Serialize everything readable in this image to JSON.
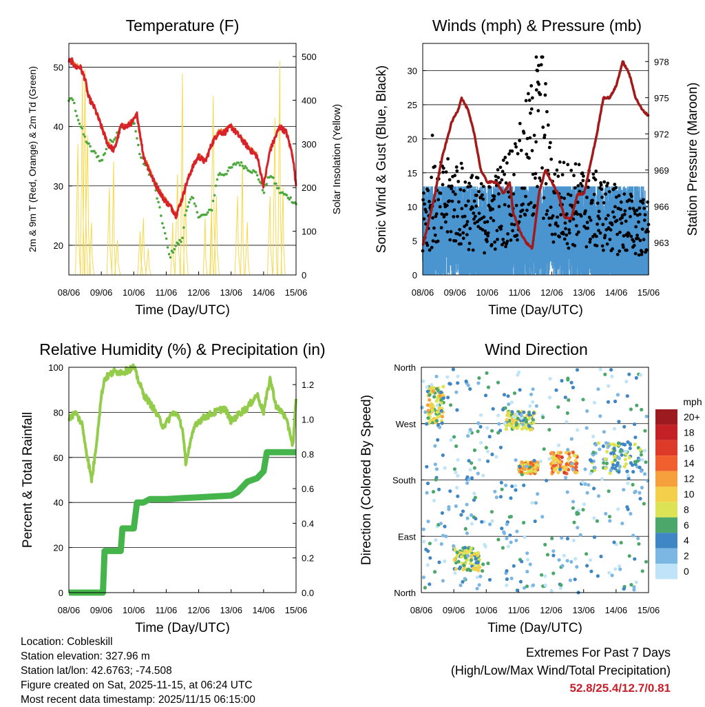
{
  "chart_data": [
    {
      "type": "line",
      "title": "Temperature (F)",
      "xlabel": "Time (Day/UTC)",
      "ylabel": "2m & 9m T (Red, Orange) & 2m Td (Green)",
      "y2label": "Solar Insolation (Yellow)",
      "x_ticks": [
        "08/06",
        "09/06",
        "10/06",
        "11/06",
        "12/06",
        "13/06",
        "14/06",
        "15/06"
      ],
      "xlim": [
        0,
        7
      ],
      "ylim": [
        15,
        54
      ],
      "y_ticks": [
        20,
        30,
        40,
        50
      ],
      "y2lim": [
        0,
        530
      ],
      "y2_ticks": [
        0,
        100,
        200,
        300,
        400,
        500
      ],
      "grid_y": [
        20,
        30,
        40,
        50
      ],
      "series": [
        {
          "name": "2m T",
          "color": "#d8222a",
          "x": [
            0,
            0.1,
            0.2,
            0.35,
            0.5,
            0.6,
            0.8,
            1,
            1.2,
            1.4,
            1.6,
            1.8,
            2,
            2.1,
            2.3,
            2.6,
            2.9,
            3.2,
            3.3,
            3.5,
            3.6,
            3.8,
            4,
            4.2,
            4.4,
            4.6,
            4.8,
            5,
            5.3,
            5.6,
            5.8,
            6,
            6.2,
            6.5,
            6.7,
            6.9,
            7
          ],
          "values": [
            51,
            51,
            50,
            50,
            48,
            45,
            43,
            40,
            37,
            36,
            40,
            40,
            41,
            42,
            35,
            31,
            28,
            26,
            25,
            28,
            30,
            33,
            35,
            34,
            37,
            39,
            39,
            40,
            38,
            36,
            35,
            30,
            36,
            40,
            39,
            35,
            30
          ]
        },
        {
          "name": "9m T",
          "color": "#f08030",
          "x": [
            0,
            0.5,
            1,
            2,
            3,
            4,
            5,
            6,
            7
          ],
          "values": [
            51.5,
            48.5,
            40.5,
            42,
            26,
            35,
            40,
            30,
            30.5
          ]
        },
        {
          "name": "2m Td",
          "color": "#4aa83c",
          "x": [
            0,
            0.1,
            0.3,
            0.5,
            0.7,
            0.9,
            1,
            1.2,
            1.4,
            1.6,
            1.8,
            2,
            2.2,
            2.4,
            2.6,
            2.8,
            3,
            3.1,
            3.3,
            3.5,
            3.6,
            3.8,
            4,
            4.2,
            4.4,
            4.6,
            4.8,
            5,
            5.2,
            5.5,
            5.8,
            6,
            6.2,
            6.5,
            6.8,
            7
          ],
          "values": [
            44,
            45,
            41,
            38,
            36,
            35,
            34,
            37,
            38,
            40,
            40,
            41,
            35,
            33,
            31,
            26,
            21,
            18,
            20,
            21,
            26,
            28,
            25,
            25,
            26,
            32,
            32,
            33,
            34,
            33,
            32,
            29,
            32,
            29,
            28,
            27
          ]
        }
      ],
      "solar_insolation": {
        "name": "Solar Insolation",
        "color": "#f7d84a",
        "x": [
          0.28,
          0.42,
          0.5,
          0.58,
          0.7,
          1.25,
          1.38,
          1.5,
          2.2,
          2.3,
          2.45,
          3.2,
          3.35,
          3.5,
          3.6,
          4.2,
          4.4,
          4.45,
          4.55,
          5.2,
          5.35,
          5.5,
          6.2,
          6.35,
          6.5,
          6.6
        ],
        "values": [
          300,
          450,
          470,
          320,
          120,
          200,
          260,
          80,
          100,
          130,
          60,
          120,
          230,
          460,
          200,
          130,
          160,
          410,
          180,
          180,
          260,
          120,
          180,
          360,
          490,
          200
        ]
      }
    },
    {
      "type": "scatter",
      "title": "Winds (mph) & Pressure (mb)",
      "xlabel": "Time (Day/UTC)",
      "ylabel": "Sonic Wind & Gust (Blue, Black)",
      "y2label": "Station Pressure (Maroon)",
      "x_ticks": [
        "08/06",
        "09/06",
        "10/06",
        "11/06",
        "12/06",
        "13/06",
        "14/06",
        "15/06"
      ],
      "xlim": [
        0,
        7
      ],
      "ylim": [
        0,
        34
      ],
      "y_ticks": [
        0,
        5,
        10,
        15,
        20,
        25,
        30
      ],
      "y2lim": [
        960.3,
        979.5
      ],
      "y2_ticks": [
        963,
        966,
        969,
        972,
        975,
        978
      ],
      "grid_y": [
        5,
        10,
        15,
        20,
        25,
        30
      ],
      "wind_mean_level": [
        [
          0,
          4
        ],
        [
          1,
          6
        ],
        [
          2,
          3
        ],
        [
          3,
          5
        ],
        [
          4,
          6
        ],
        [
          5,
          5
        ],
        [
          6,
          4
        ],
        [
          7,
          3
        ]
      ],
      "gust_peak": [
        [
          0,
          14
        ],
        [
          1,
          16
        ],
        [
          2,
          12
        ],
        [
          3,
          20
        ],
        [
          3.7,
          32
        ],
        [
          4,
          16
        ],
        [
          5,
          15
        ],
        [
          6,
          12
        ],
        [
          7,
          10
        ]
      ],
      "pressure": {
        "name": "Station Pressure",
        "color": "#a31a1a",
        "x": [
          0,
          0.3,
          0.6,
          0.9,
          1.1,
          1.2,
          1.4,
          1.6,
          1.8,
          2,
          2.3,
          2.5,
          2.7,
          2.8,
          3,
          3.2,
          3.4,
          3.6,
          3.8,
          4,
          4.2,
          4.4,
          4.6,
          4.8,
          5,
          5.2,
          5.4,
          5.6,
          5.8,
          6,
          6.1,
          6.2,
          6.4,
          6.6,
          6.8,
          7
        ],
        "values": [
          962.7,
          966,
          970,
          973,
          974,
          975,
          974,
          972,
          969,
          968,
          968,
          967,
          968,
          965.5,
          964,
          963,
          962.5,
          967,
          969,
          968,
          967,
          965,
          965,
          967,
          967,
          969.5,
          972,
          975,
          975,
          976,
          977,
          978,
          977,
          975,
          974,
          973.5
        ]
      }
    },
    {
      "type": "line",
      "title": "Relative Humidity (%) & Precipitation (in)",
      "xlabel": "Time (Day/UTC)",
      "ylabel": "Percent & Total Rainfall",
      "x_ticks": [
        "08/06",
        "09/06",
        "10/06",
        "11/06",
        "12/06",
        "13/06",
        "14/06",
        "15/06"
      ],
      "xlim": [
        0,
        7
      ],
      "ylim": [
        0,
        100
      ],
      "y_ticks": [
        0,
        20,
        40,
        60,
        80,
        100
      ],
      "y2lim": [
        0,
        1.3
      ],
      "y2_ticks": [
        0.0,
        0.2,
        0.4,
        0.6,
        0.8,
        1.0,
        1.2
      ],
      "grid_y": [
        20,
        40,
        60,
        80
      ],
      "series": [
        {
          "name": "Relative Humidity",
          "color": "#93cc4b",
          "x": [
            0,
            0.2,
            0.4,
            0.6,
            0.7,
            0.8,
            1,
            1.1,
            1.4,
            1.7,
            2,
            2.1,
            2.3,
            2.6,
            2.9,
            3,
            3.2,
            3.4,
            3.5,
            3.6,
            3.9,
            4.2,
            4.5,
            4.8,
            5,
            5.3,
            5.5,
            5.8,
            6,
            6.2,
            6.4,
            6.6,
            6.8,
            6.9,
            7
          ],
          "values": [
            77,
            80,
            75,
            58,
            50,
            60,
            87,
            95,
            98,
            98,
            100,
            96,
            88,
            82,
            74,
            75,
            80,
            78,
            72,
            58,
            75,
            78,
            80,
            82,
            76,
            80,
            82,
            88,
            80,
            95,
            82,
            80,
            72,
            65,
            85
          ]
        },
        {
          "name": "Total Precipitation",
          "color": "#45b44a",
          "axis": "y2",
          "x": [
            0,
            0.5,
            1.05,
            1.1,
            1.6,
            1.65,
            2,
            2.1,
            2.3,
            2.5,
            3,
            3.5,
            4,
            4.5,
            5,
            5.2,
            5.5,
            5.8,
            6,
            6.1,
            6.5,
            7
          ],
          "values": [
            0,
            0,
            0,
            0.24,
            0.24,
            0.37,
            0.37,
            0.52,
            0.52,
            0.54,
            0.54,
            0.545,
            0.55,
            0.555,
            0.56,
            0.58,
            0.64,
            0.66,
            0.7,
            0.81,
            0.81,
            0.81
          ]
        }
      ]
    },
    {
      "type": "scatter",
      "title": "Wind Direction",
      "xlabel": "Time (Day/UTC)",
      "ylabel": "Direction (Colored By Speed)",
      "x_ticks": [
        "08/06",
        "09/06",
        "10/06",
        "11/06",
        "12/06",
        "13/06",
        "14/06",
        "15/06"
      ],
      "xlim": [
        0,
        7
      ],
      "ylim": [
        0,
        360
      ],
      "y_tick_labels": [
        "North",
        "East",
        "South",
        "West",
        "North"
      ],
      "y_ticks": [
        0,
        90,
        180,
        270,
        360
      ],
      "colorbar_label": "mph",
      "colorbar_ticks": [
        "20+",
        "18",
        "16",
        "14",
        "12",
        "10",
        "8",
        "6",
        "4",
        "2",
        "0"
      ],
      "colorbar_colors": [
        "#9b1b1e",
        "#c42127",
        "#de3a2a",
        "#f0602e",
        "#f5a03c",
        "#f4cf4c",
        "#dce455",
        "#4ba86a",
        "#3f86c4",
        "#7cb6e3",
        "#bfe4f7"
      ],
      "clusters": [
        {
          "x": [
            0.2,
            0.7
          ],
          "dir": [
            270,
            330
          ],
          "speed": 9
        },
        {
          "x": [
            1.0,
            1.8
          ],
          "dir": [
            35,
            75
          ],
          "speed": 7
        },
        {
          "x": [
            2.6,
            3.5
          ],
          "dir": [
            260,
            290
          ],
          "speed": 7
        },
        {
          "x": [
            3.0,
            3.6
          ],
          "dir": [
            190,
            210
          ],
          "speed": 11
        },
        {
          "x": [
            4.0,
            4.8
          ],
          "dir": [
            190,
            225
          ],
          "speed": 12
        },
        {
          "x": [
            5.2,
            6.8
          ],
          "dir": [
            190,
            240
          ],
          "speed": 5
        },
        {
          "x": [
            0,
            7
          ],
          "dir": [
            0,
            360
          ],
          "speed": 3
        }
      ]
    }
  ],
  "info": {
    "location": "Location: Cobleskill",
    "elevation": "Station elevation: 327.96 m",
    "latlon": "Station lat/lon: 42.6763; -74.508",
    "created": "Figure created on Sat, 2025-11-15, at 06:24 UTC",
    "recent": "Most recent data timestamp: 2025/11/15 06:15:00"
  },
  "extremes": {
    "title": "Extremes For Past 7 Days",
    "subtitle": "(High/Low/Max Wind/Total Precipitation)",
    "values": "52.8/25.4/12.7/0.81"
  }
}
